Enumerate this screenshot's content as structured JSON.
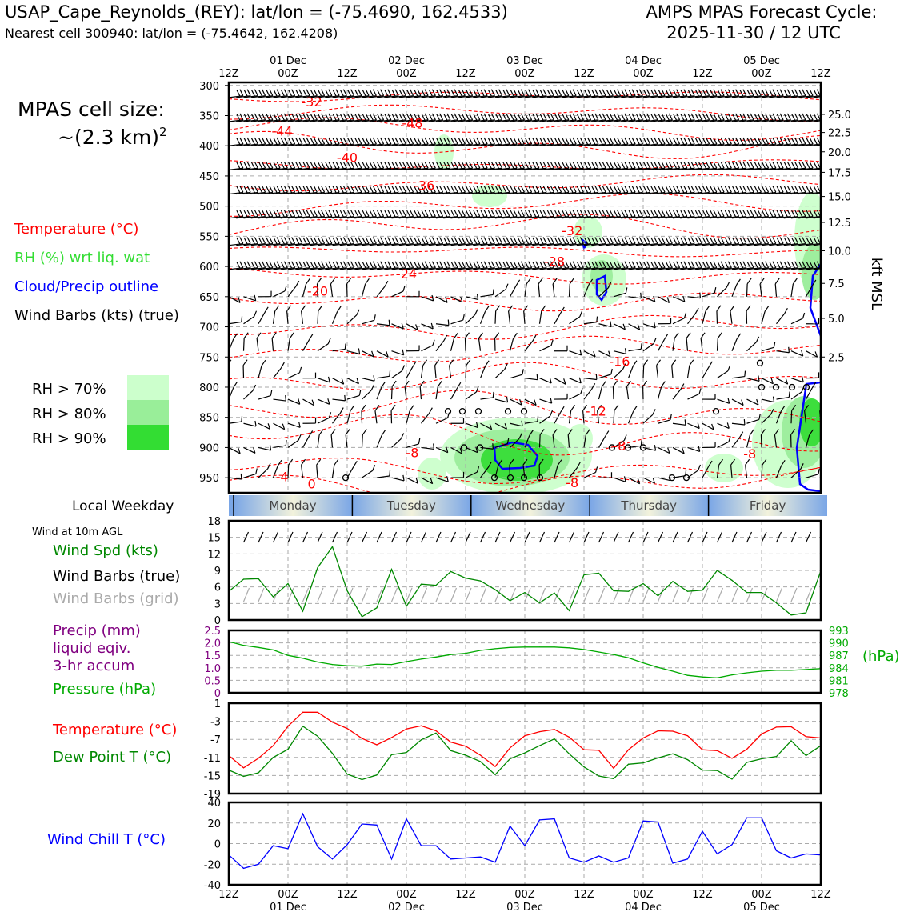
{
  "header": {
    "station_line": "USAP_Cape_Reynolds_(REY): lat/lon = (-75.4690, 162.4533)",
    "cell_line": "Nearest cell 300940: lat/lon = (-75.4642, 162.4208)",
    "cycle_line1": "AMPS MPAS Forecast Cycle:",
    "cycle_line2": "2025-11-30 / 12 UTC"
  },
  "cell_size": {
    "label": "MPAS cell size:",
    "value": "~(2.3 km)",
    "sup": "2"
  },
  "legend": {
    "temperature": "Temperature (°C)",
    "rh": "RH (%) wrt liq. wat",
    "cloud": "Cloud/Precip outline",
    "barbs": "Wind Barbs (kts) (true)",
    "rh_levels": [
      {
        "label": "RH > 70%",
        "color": "#ccffcc"
      },
      {
        "label": "RH > 80%",
        "color": "#99ee99"
      },
      {
        "label": "RH > 90%",
        "color": "#33dd33"
      }
    ]
  },
  "colors": {
    "temp": "#ff0000",
    "dew": "#008800",
    "wind_spd": "#008800",
    "pressure": "#00aa00",
    "precip": "#800080",
    "chill": "#0000ff",
    "cloud": "#0000ff",
    "barb_true": "#000000",
    "barb_grid": "#aaaaaa"
  },
  "time_axis": {
    "top_labels": [
      "12Z",
      "00Z",
      "12Z",
      "00Z",
      "12Z",
      "00Z",
      "12Z",
      "00Z",
      "12Z",
      "00Z",
      "12Z"
    ],
    "date_labels": [
      "01 Dec",
      "02 Dec",
      "03 Dec",
      "04 Dec",
      "05 Dec"
    ],
    "bottom_labels": [
      "12Z",
      "00Z",
      "12Z",
      "00Z",
      "12Z",
      "00Z",
      "12Z",
      "00Z",
      "12Z",
      "00Z",
      "12Z"
    ]
  },
  "weekday": {
    "label": "Local Weekday",
    "days": [
      "Monday",
      "Tuesday",
      "Wednesday",
      "Thursday",
      "Friday"
    ]
  },
  "panel_titles": {
    "wind10m": "Wind at 10m AGL",
    "wind_spd": "Wind Spd (kts)",
    "barbs_true": "Wind Barbs (true)",
    "barbs_grid": "Wind Barbs (grid)",
    "precip1": "Precip (mm)",
    "precip2": "liquid eqiv.",
    "precip3": "3-hr accum",
    "pressure": "Pressure (hPa)",
    "hpa_unit": "(hPa)",
    "temp": "Temperature (°C)",
    "dew": "Dew Point T (°C)",
    "chill": "Wind Chill T (°C)",
    "kft": "kft MSL"
  },
  "chart_data": [
    {
      "type": "heatmap",
      "name_hint": "time-height cross section",
      "y_pressure_ticks": [
        300,
        350,
        400,
        450,
        500,
        550,
        600,
        650,
        700,
        750,
        800,
        850,
        900,
        950
      ],
      "y_pressure_range": [
        975,
        295
      ],
      "kft_ticks": [
        {
          "label": "25.0",
          "p": 348
        },
        {
          "label": "22.5",
          "p": 378
        },
        {
          "label": "20.0",
          "p": 410
        },
        {
          "label": "17.5",
          "p": 444
        },
        {
          "label": "15.0",
          "p": 484
        },
        {
          "label": "12.5",
          "p": 527
        },
        {
          "label": "10.0",
          "p": 574
        },
        {
          "label": "7.5",
          "p": 628
        },
        {
          "label": "5.0",
          "p": 686
        },
        {
          "label": "2.5",
          "p": 750
        }
      ],
      "isotherm_labels": [
        {
          "text": "-32",
          "x": 14,
          "p": 327
        },
        {
          "text": "-48",
          "x": 31,
          "p": 362
        },
        {
          "text": "-44",
          "x": 9,
          "p": 375
        },
        {
          "text": "-40",
          "x": 20,
          "p": 419
        },
        {
          "text": "-36",
          "x": 33,
          "p": 465
        },
        {
          "text": "-32",
          "x": 58,
          "p": 540
        },
        {
          "text": "-28",
          "x": 55,
          "p": 591
        },
        {
          "text": "-24",
          "x": 30,
          "p": 612
        },
        {
          "text": "-20",
          "x": 15,
          "p": 640
        },
        {
          "text": "-16",
          "x": 66,
          "p": 757
        },
        {
          "text": "-12",
          "x": 62,
          "p": 839
        },
        {
          "text": "-8",
          "x": 31,
          "p": 908
        },
        {
          "text": "-8",
          "x": 66,
          "p": 897
        },
        {
          "text": "-8",
          "x": 88,
          "p": 910
        },
        {
          "text": "-8",
          "x": 58,
          "p": 958
        },
        {
          "text": "-4",
          "x": 9,
          "p": 948
        },
        {
          "text": "0",
          "x": 14,
          "p": 960
        }
      ]
    },
    {
      "type": "line",
      "name_hint": "10m wind speed",
      "ylim": [
        0,
        18
      ],
      "yticks": [
        0,
        3,
        6,
        9,
        12,
        15,
        18
      ],
      "x_hours": [
        0,
        3,
        6,
        9,
        12,
        15,
        18,
        21,
        24,
        27,
        30,
        33,
        36,
        39,
        42,
        45,
        48,
        51,
        54,
        57,
        60,
        63,
        66,
        69,
        72,
        75,
        78,
        81,
        84,
        87,
        90,
        93,
        96,
        99,
        102,
        105,
        108,
        111,
        114,
        117,
        120
      ],
      "series": [
        {
          "values": [
            5.2,
            7.4,
            7.5,
            4.2,
            6.6,
            1.6,
            9.5,
            13.3,
            5.3,
            0.6,
            2.2,
            9.2,
            2.5,
            6.5,
            6.3,
            8.8,
            7.6,
            7.1,
            5.5,
            3.5,
            5.0,
            3.1,
            4.9,
            1.7,
            8.2,
            8.5,
            5.3,
            5.2,
            6.6,
            4.4,
            7.0,
            5.2,
            5.4,
            9.0,
            7.2,
            5.0,
            5.0,
            3.1,
            0.9,
            1.3,
            8.9
          ]
        }
      ]
    },
    {
      "type": "line",
      "name_hint": "precip and pressure",
      "ylim_precip": [
        0,
        2.5
      ],
      "yticks_precip": [
        "0",
        "0.5",
        "1.0",
        "1.5",
        "2.0",
        "2.5"
      ],
      "ylim_pressure": [
        978,
        993
      ],
      "yticks_pressure": [
        "978",
        "981",
        "984",
        "987",
        "990",
        "993"
      ],
      "x_hours": [
        0,
        3,
        6,
        9,
        12,
        15,
        18,
        21,
        24,
        27,
        30,
        33,
        36,
        39,
        42,
        45,
        48,
        51,
        54,
        57,
        60,
        63,
        66,
        69,
        72,
        75,
        78,
        81,
        84,
        87,
        90,
        93,
        96,
        99,
        102,
        105,
        108,
        111,
        114,
        117,
        120
      ],
      "series": [
        {
          "values": [
            990.3,
            989.4,
            988.9,
            988.3,
            987.0,
            986.3,
            985.4,
            984.8,
            984.5,
            984.4,
            984.9,
            984.8,
            985.5,
            986.1,
            986.6,
            987.2,
            987.5,
            988.2,
            988.6,
            988.9,
            989.0,
            989.0,
            989.0,
            988.8,
            988.4,
            987.8,
            987.2,
            986.4,
            985.2,
            984.1,
            983.2,
            982.2,
            981.8,
            981.6,
            982.3,
            982.8,
            983.2,
            983.4,
            983.4,
            983.6,
            983.8
          ]
        },
        {
          "values": [
            0,
            0,
            0,
            0,
            0,
            0,
            0,
            0,
            0,
            0,
            0,
            0,
            0,
            0,
            0,
            0,
            0,
            0,
            0,
            0,
            0,
            0,
            0,
            0,
            0,
            0,
            0,
            0,
            0,
            0,
            0,
            0,
            0,
            0,
            0,
            0,
            0,
            0,
            0,
            0,
            0
          ]
        }
      ]
    },
    {
      "type": "line",
      "name_hint": "temperature and dew point",
      "ylim": [
        -19,
        1
      ],
      "yticks": [
        1,
        -3,
        -7,
        -11,
        -15,
        -19
      ],
      "x_hours": [
        0,
        3,
        6,
        9,
        12,
        15,
        18,
        21,
        24,
        27,
        30,
        33,
        36,
        39,
        42,
        45,
        48,
        51,
        54,
        57,
        60,
        63,
        66,
        69,
        72,
        75,
        78,
        81,
        84,
        87,
        90,
        93,
        96,
        99,
        102,
        105,
        108,
        111,
        114,
        117,
        120
      ],
      "series": [
        {
          "values": [
            -10.6,
            -13.3,
            -11.2,
            -8.4,
            -4.1,
            -1.0,
            -1.0,
            -3.2,
            -4.6,
            -6.8,
            -8.2,
            -6.6,
            -4.7,
            -4.0,
            -5.1,
            -7.6,
            -8.5,
            -10.5,
            -13.0,
            -8.9,
            -6.2,
            -5.3,
            -4.8,
            -6.5,
            -9.3,
            -9.4,
            -13.4,
            -9.3,
            -6.7,
            -5.1,
            -5.2,
            -6.2,
            -9.3,
            -9.5,
            -11.2,
            -9.2,
            -5.8,
            -4.3,
            -4.2,
            -6.4,
            -6.7
          ]
        },
        {
          "values": [
            -13.8,
            -15.2,
            -14.4,
            -11.0,
            -9.2,
            -4.1,
            -6.3,
            -10.1,
            -14.7,
            -15.9,
            -14.9,
            -10.4,
            -9.9,
            -7.1,
            -5.6,
            -9.5,
            -10.5,
            -11.9,
            -14.8,
            -11.3,
            -10.0,
            -8.4,
            -6.9,
            -10.2,
            -13.1,
            -15.1,
            -15.7,
            -12.5,
            -12.2,
            -11.1,
            -10.2,
            -11.5,
            -13.8,
            -13.9,
            -15.8,
            -12.1,
            -11.3,
            -10.8,
            -7.3,
            -10.6,
            -8.4
          ]
        }
      ]
    },
    {
      "type": "line",
      "name_hint": "wind chill",
      "ylim": [
        -40,
        40
      ],
      "yticks": [
        40,
        20,
        0,
        -20,
        -40
      ],
      "x_hours": [
        0,
        3,
        6,
        9,
        12,
        15,
        18,
        21,
        24,
        27,
        30,
        33,
        36,
        39,
        42,
        45,
        48,
        51,
        54,
        57,
        60,
        63,
        66,
        69,
        72,
        75,
        78,
        81,
        84,
        87,
        90,
        93,
        96,
        99,
        102,
        105,
        108,
        111,
        114,
        117,
        120
      ],
      "series": [
        {
          "values": [
            -11,
            -24,
            -20,
            -2,
            -5,
            29,
            -3,
            -15,
            -1,
            19,
            18,
            -15,
            24,
            -2,
            -2,
            -15,
            -14,
            -13,
            -18,
            17,
            -2,
            23,
            24,
            -14,
            -18,
            -12,
            -18,
            -14,
            22,
            21,
            -19,
            -15,
            12,
            -10,
            -1,
            25,
            25,
            -7,
            -14,
            -10,
            -11
          ]
        }
      ]
    }
  ]
}
